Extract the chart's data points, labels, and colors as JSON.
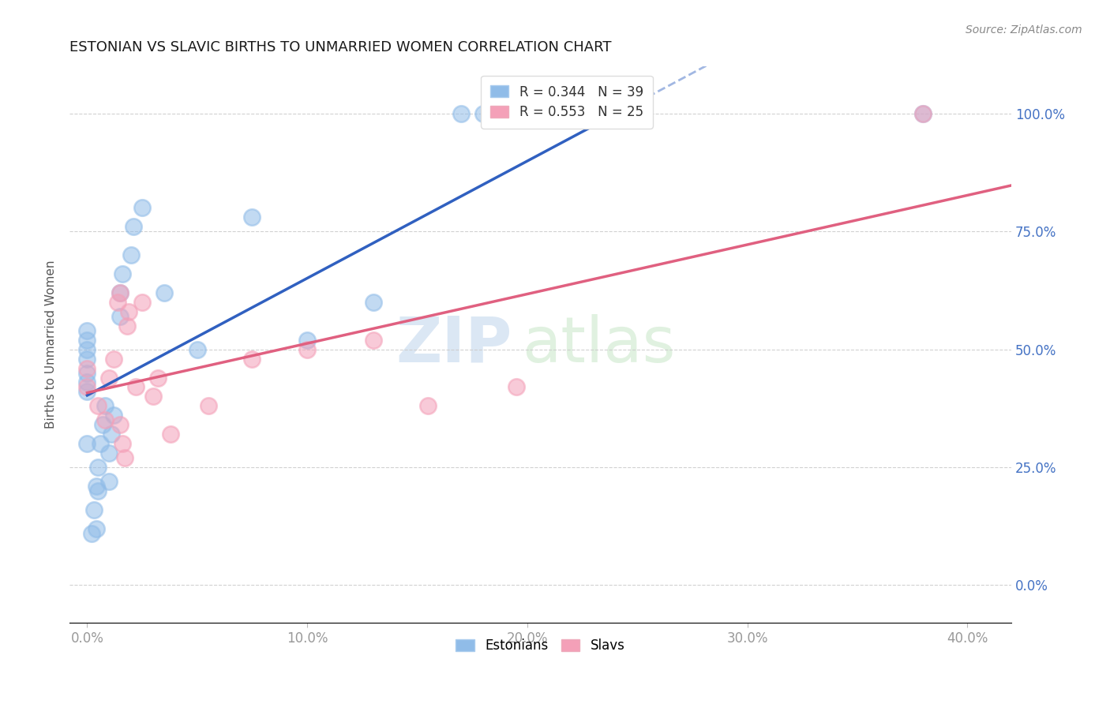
{
  "title": "ESTONIAN VS SLAVIC BIRTHS TO UNMARRIED WOMEN CORRELATION CHART",
  "source": "Source: ZipAtlas.com",
  "ylabel": "Births to Unmarried Women",
  "xlabel_ticks": [
    "0.0%",
    "10.0%",
    "20.0%",
    "30.0%",
    "40.0%"
  ],
  "xlabel_vals": [
    0.0,
    0.1,
    0.2,
    0.3,
    0.4
  ],
  "ylabel_ticks": [
    "0.0%",
    "25.0%",
    "50.0%",
    "75.0%",
    "100.0%"
  ],
  "ylabel_vals": [
    0.0,
    0.25,
    0.5,
    0.75,
    1.0
  ],
  "xlim": [
    -0.008,
    0.42
  ],
  "ylim": [
    -0.08,
    1.1
  ],
  "R_estonian": 0.344,
  "N_estonian": 39,
  "R_slavic": 0.553,
  "N_slavic": 25,
  "estonian_color": "#90bce8",
  "slavic_color": "#f4a0b8",
  "estonian_line_color": "#3060c0",
  "slavic_line_color": "#e06080",
  "watermark_zip": "ZIP",
  "watermark_atlas": "atlas",
  "est_x": [
    0.0,
    0.0,
    0.0,
    0.0,
    0.0,
    0.0,
    0.0,
    0.0,
    0.004,
    0.005,
    0.005,
    0.006,
    0.007,
    0.008,
    0.01,
    0.01,
    0.011,
    0.012,
    0.015,
    0.015,
    0.016,
    0.02,
    0.021,
    0.025,
    0.035,
    0.05,
    0.075,
    0.1,
    0.13,
    0.17,
    0.18,
    0.19,
    0.2,
    0.21,
    0.22,
    0.38,
    0.002,
    0.003,
    0.004
  ],
  "est_y": [
    0.41,
    0.43,
    0.45,
    0.48,
    0.5,
    0.52,
    0.54,
    0.3,
    0.12,
    0.2,
    0.25,
    0.3,
    0.34,
    0.38,
    0.22,
    0.28,
    0.32,
    0.36,
    0.57,
    0.62,
    0.66,
    0.7,
    0.76,
    0.8,
    0.62,
    0.5,
    0.78,
    0.52,
    0.6,
    1.0,
    1.0,
    1.0,
    1.0,
    1.0,
    1.0,
    1.0,
    0.11,
    0.16,
    0.21
  ],
  "slav_x": [
    0.0,
    0.0,
    0.005,
    0.008,
    0.01,
    0.012,
    0.014,
    0.015,
    0.018,
    0.019,
    0.022,
    0.025,
    0.03,
    0.032,
    0.038,
    0.055,
    0.075,
    0.1,
    0.13,
    0.155,
    0.195,
    0.38,
    0.015,
    0.016,
    0.017
  ],
  "slav_y": [
    0.42,
    0.46,
    0.38,
    0.35,
    0.44,
    0.48,
    0.6,
    0.62,
    0.55,
    0.58,
    0.42,
    0.6,
    0.4,
    0.44,
    0.32,
    0.38,
    0.48,
    0.5,
    0.52,
    0.38,
    0.42,
    1.0,
    0.34,
    0.3,
    0.27
  ]
}
